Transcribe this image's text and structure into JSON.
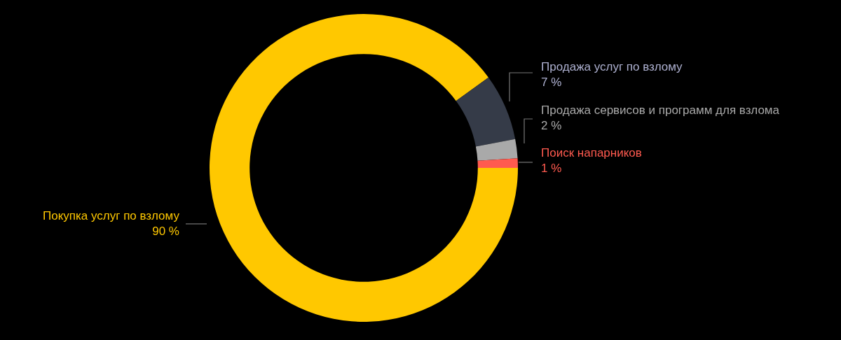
{
  "chart_data": {
    "type": "donut",
    "categories": [
      "Покупка услуг по взлому",
      "Продажа услуг по взлому",
      "Продажа сервисов и программ для взлома",
      "Поиск напарников"
    ],
    "values": [
      90,
      7,
      2,
      1
    ],
    "value_labels": [
      "90 %",
      "7 %",
      "2 %",
      "1 %"
    ],
    "colors": [
      "#ffc800",
      "#353b48",
      "#a9a9a9",
      "#ff5a4f"
    ]
  }
}
